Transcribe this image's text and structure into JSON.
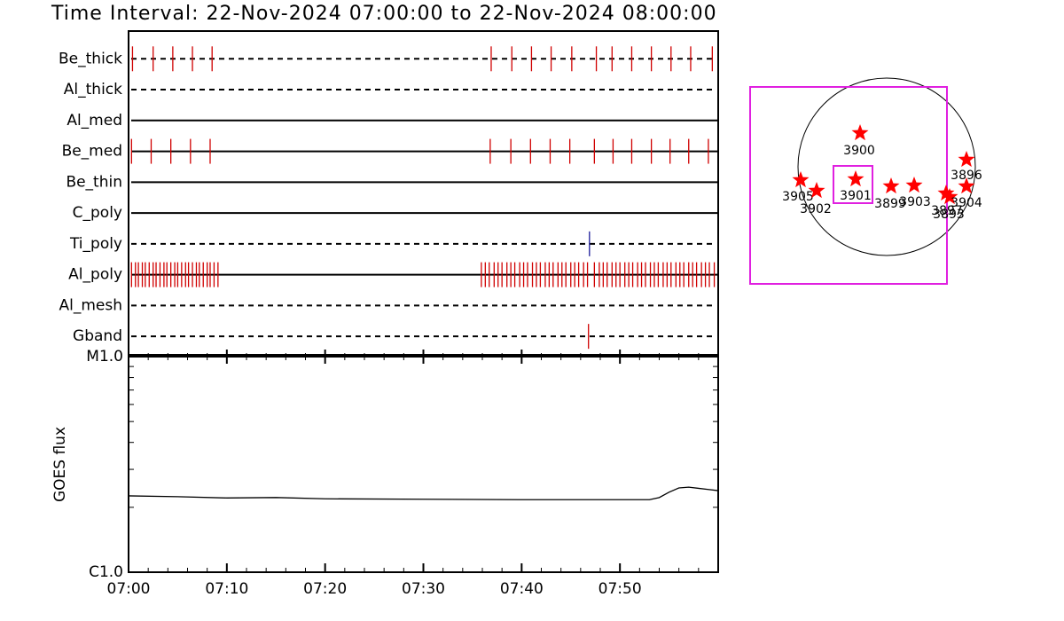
{
  "title": "Time Interval: 22-Nov-2024 07:00:00 to 22-Nov-2024 08:00:00",
  "chart_data": [
    {
      "type": "timeline",
      "xlim": [
        0,
        60
      ],
      "rows": [
        {
          "name": "Be_thick",
          "style": "dashed",
          "color": "#d00000",
          "events": [
            0.4,
            2.5,
            4.5,
            6.5,
            8.5,
            36.9,
            39.0,
            41.0,
            43.0,
            45.1,
            47.6,
            49.2,
            51.2,
            53.2,
            55.2,
            57.2,
            59.4
          ]
        },
        {
          "name": "Al_thick",
          "style": "dashed",
          "color": "#d00000",
          "events": []
        },
        {
          "name": "Al_med",
          "style": "solid",
          "color": "#d00000",
          "events": []
        },
        {
          "name": "Be_med",
          "style": "solid",
          "color": "#d00000",
          "events": [
            0.3,
            2.3,
            4.3,
            6.3,
            8.3,
            36.8,
            38.9,
            40.9,
            42.9,
            44.9,
            47.4,
            49.3,
            51.2,
            53.2,
            55.1,
            57.0,
            59.0
          ]
        },
        {
          "name": "Be_thin",
          "style": "solid",
          "color": "#d00000",
          "events": []
        },
        {
          "name": "C_poly",
          "style": "solid",
          "color": "#d00000",
          "events": []
        },
        {
          "name": "Ti_poly",
          "style": "dashed",
          "color": "#1a1a99",
          "events": [
            46.9
          ]
        },
        {
          "name": "Al_poly",
          "style": "solid",
          "color": "#d00000",
          "events": [
            0.3,
            0.7,
            1.0,
            1.4,
            1.7,
            2.1,
            2.5,
            2.8,
            3.2,
            3.6,
            3.9,
            4.3,
            4.7,
            5.0,
            5.4,
            5.8,
            6.1,
            6.5,
            6.9,
            7.2,
            7.6,
            8.0,
            8.3,
            8.7,
            9.1,
            35.9,
            36.3,
            36.7,
            37.2,
            37.6,
            38.0,
            38.5,
            38.9,
            39.3,
            39.8,
            40.2,
            40.6,
            41.1,
            41.5,
            41.9,
            42.4,
            42.8,
            43.2,
            43.7,
            44.1,
            44.5,
            45.0,
            45.4,
            45.8,
            46.3,
            46.7,
            47.4,
            47.9,
            48.3,
            48.7,
            49.2,
            49.6,
            50.0,
            50.5,
            50.9,
            51.3,
            51.8,
            52.2,
            52.6,
            53.1,
            53.5,
            53.9,
            54.4,
            54.8,
            55.2,
            55.7,
            56.1,
            56.5,
            57.0,
            57.4,
            57.8,
            58.3,
            58.7,
            59.1,
            59.6
          ]
        },
        {
          "name": "Al_mesh",
          "style": "dashed",
          "color": "#d00000",
          "events": []
        },
        {
          "name": "Gband",
          "style": "dashed",
          "color": "#d00000",
          "events": [
            46.8
          ]
        }
      ]
    },
    {
      "type": "line",
      "y_label": "GOES flux",
      "log_scale": true,
      "xlim": [
        0,
        60
      ],
      "xticks": [
        {
          "value": 0,
          "label": "07:00"
        },
        {
          "value": 10,
          "label": "07:10"
        },
        {
          "value": 20,
          "label": "07:20"
        },
        {
          "value": 30,
          "label": "07:30"
        },
        {
          "value": 40,
          "label": "07:40"
        },
        {
          "value": 50,
          "label": "07:50"
        }
      ],
      "minor_xticks": [
        2,
        4,
        6,
        8,
        12,
        14,
        16,
        18,
        22,
        24,
        26,
        28,
        32,
        34,
        36,
        38,
        42,
        44,
        46,
        48,
        52,
        54,
        56,
        58
      ],
      "ylim": [
        1e-06,
        1e-05
      ],
      "yticks": [
        {
          "value": 1e-06,
          "label": "C1.0"
        },
        {
          "value": 1e-05,
          "label": "M1.0"
        }
      ],
      "minor_yticks": [
        2e-06,
        3e-06,
        4e-06,
        5e-06,
        6e-06,
        7e-06,
        8e-06,
        9e-06
      ],
      "color": "#000000",
      "x": [
        0,
        5,
        10,
        15,
        20,
        30,
        40,
        50,
        53,
        54,
        55,
        56,
        57,
        58,
        59,
        60
      ],
      "values": [
        2.26e-06,
        2.24e-06,
        2.21e-06,
        2.22e-06,
        2.19e-06,
        2.18e-06,
        2.17e-06,
        2.17e-06,
        2.17e-06,
        2.22e-06,
        2.35e-06,
        2.46e-06,
        2.48e-06,
        2.45e-06,
        2.42e-06,
        2.39e-06
      ]
    }
  ],
  "map": {
    "regions": [
      "3900",
      "3901",
      "3905",
      "3902",
      "3899",
      "3903",
      "3897",
      "3893",
      "3896",
      "3904"
    ]
  }
}
